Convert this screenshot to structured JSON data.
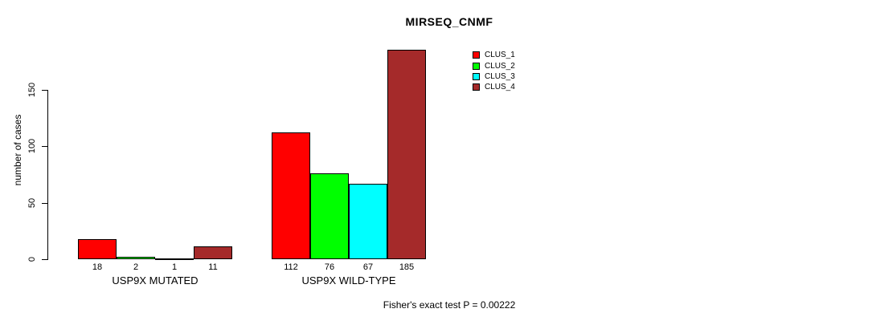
{
  "chart_data": {
    "type": "bar",
    "title": "MIRSEQ_CNMF",
    "ylabel": "number of cases",
    "yticks": [
      0,
      50,
      100,
      150
    ],
    "ylim": [
      0,
      190
    ],
    "grid": false,
    "legend_position": "top-right",
    "categories": [
      "USP9X MUTATED",
      "USP9X WILD-TYPE"
    ],
    "series": [
      {
        "name": "CLUS_1",
        "color": "#FF0000",
        "values": [
          18,
          112
        ]
      },
      {
        "name": "CLUS_2",
        "color": "#00FF00",
        "values": [
          2,
          76
        ]
      },
      {
        "name": "CLUS_3",
        "color": "#00FFFF",
        "values": [
          1,
          67
        ]
      },
      {
        "name": "CLUS_4",
        "color": "#A52A2A",
        "values": [
          11,
          185
        ]
      }
    ],
    "bar_value_labels": [
      [
        "18",
        "2",
        "1",
        "11"
      ],
      [
        "112",
        "76",
        "67",
        "185"
      ]
    ],
    "caption": "Fisher's exact test P = 0.00222"
  }
}
